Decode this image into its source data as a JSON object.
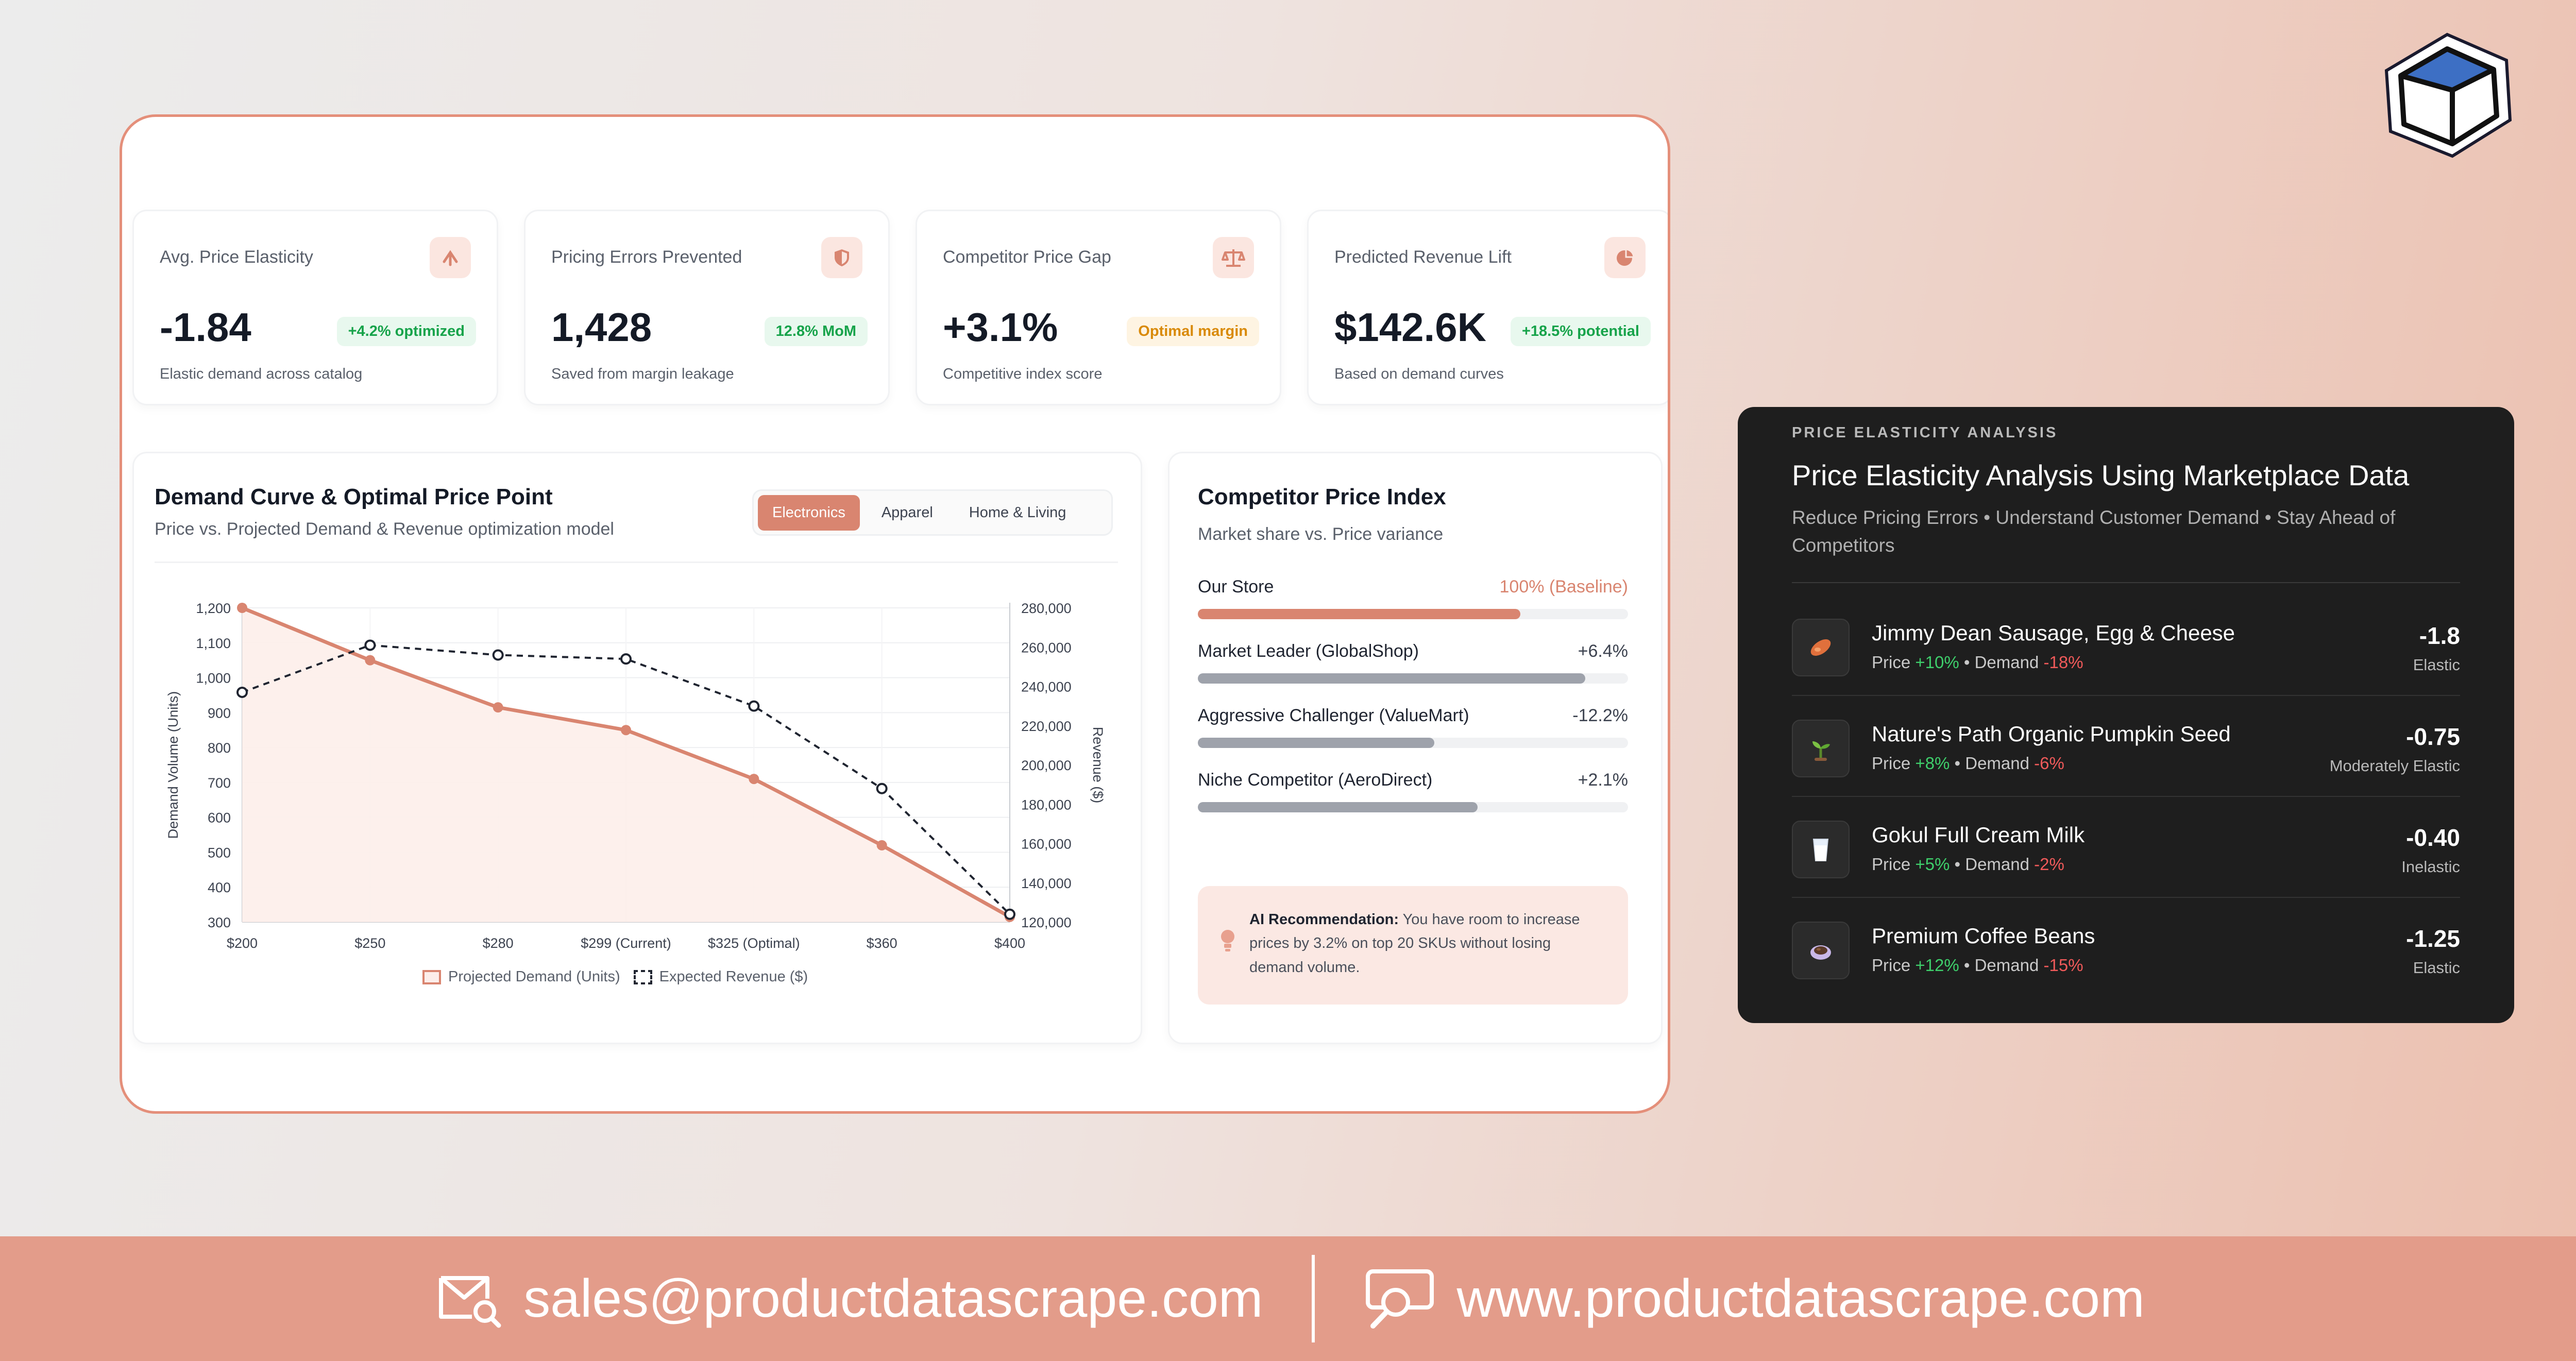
{
  "kpis": [
    {
      "title": "Avg. Price Elasticity",
      "value": "-1.84",
      "badge": "+4.2% optimized",
      "sub": "Elastic demand across catalog",
      "icon": "elasticity-icon"
    },
    {
      "title": "Pricing Errors Prevented",
      "value": "1,428",
      "badge": "12.8% MoM",
      "sub": "Saved from margin leakage",
      "icon": "shield-icon"
    },
    {
      "title": "Competitor Price Gap",
      "value": "+3.1%",
      "badge": "Optimal margin",
      "sub": "Competitive index score",
      "icon": "scale-icon"
    },
    {
      "title": "Predicted Revenue Lift",
      "value": "$142.6K",
      "badge": "+18.5% potential",
      "sub": "Based on demand curves",
      "icon": "pie-chart-icon"
    }
  ],
  "demand_card": {
    "title": "Demand Curve & Optimal Price Point",
    "subtitle": "Price vs. Projected Demand & Revenue optimization model",
    "tabs": [
      "Electronics",
      "Apparel",
      "Home & Living"
    ],
    "active_tab": "Electronics"
  },
  "chart_data": {
    "type": "line",
    "categories": [
      "$200",
      "$250",
      "$280",
      "$299 (Current)",
      "$325 (Optimal)",
      "$360",
      "$400"
    ],
    "series": [
      {
        "name": "Projected Demand (Units)",
        "axis": "left",
        "color": "#d98570",
        "style": "solid-area",
        "values": [
          1200,
          1050,
          915,
          850,
          710,
          520,
          315
        ]
      },
      {
        "name": "Expected Revenue ($)",
        "axis": "right",
        "color": "#1f2430",
        "style": "dashed",
        "values": [
          237000,
          261000,
          256000,
          254000,
          230000,
          188000,
          124000
        ]
      }
    ],
    "ylabel": "Demand Volume (Units)",
    "y2label": "Revenue ($)",
    "ylim": [
      300,
      1200
    ],
    "y2lim": [
      120000,
      280000
    ],
    "yticks": [
      "300",
      "400",
      "500",
      "600",
      "700",
      "800",
      "900",
      "1,000",
      "1,100",
      "1,200"
    ],
    "y2ticks": [
      "120,000",
      "140,000",
      "160,000",
      "180,000",
      "200,000",
      "220,000",
      "240,000",
      "260,000",
      "280,000"
    ],
    "grid": true,
    "legend": "bottom"
  },
  "competitor_card": {
    "title": "Competitor Price Index",
    "subtitle": "Market share vs. Price variance",
    "rows": [
      {
        "name": "Our Store",
        "value": "100% (Baseline)",
        "share": 0.75,
        "color": "#d98570",
        "highlight": true
      },
      {
        "name": "Market Leader (GlobalShop)",
        "value": "+6.4%",
        "share": 0.9,
        "color": "#9ea2ab",
        "highlight": false
      },
      {
        "name": "Aggressive Challenger (ValueMart)",
        "value": "-12.2%",
        "share": 0.55,
        "color": "#9ea2ab",
        "highlight": false
      },
      {
        "name": "Niche Competitor (AeroDirect)",
        "value": "+2.1%",
        "share": 0.65,
        "color": "#9ea2ab",
        "highlight": false
      }
    ],
    "ai_label": "AI Recommendation:",
    "ai_text": " You have room to increase prices by 3.2% on top 20 SKUs without losing demand volume."
  },
  "panel": {
    "kicker": "PRICE ELASTICITY ANALYSIS",
    "title": "Price Elasticity Analysis Using Marketplace Data",
    "subtitle": "Reduce Pricing Errors • Understand Customer Demand • Stay Ahead of Competitors",
    "products": [
      {
        "name": "Jimmy Dean Sausage, Egg & Cheese",
        "price": "+10%",
        "demand": "-18%",
        "score": "-1.8",
        "label": "Elastic",
        "icon": "sausage-icon"
      },
      {
        "name": "Nature's Path Organic Pumpkin Seed",
        "price": "+8%",
        "demand": "-6%",
        "score": "-0.75",
        "label": "Moderately Elastic",
        "icon": "seedling-icon"
      },
      {
        "name": "Gokul Full Cream Milk",
        "price": "+5%",
        "demand": "-2%",
        "score": "-0.40",
        "label": "Inelastic",
        "icon": "milk-glass-icon"
      },
      {
        "name": "Premium Coffee Beans",
        "price": "+12%",
        "demand": "-15%",
        "score": "-1.25",
        "label": "Elastic",
        "icon": "coffee-icon"
      }
    ],
    "price_label": "Price",
    "demand_label": "Demand",
    "sep": "•"
  },
  "footer": {
    "email": "sales@productdatascrape.com",
    "website": "www.productdatascrape.com"
  }
}
